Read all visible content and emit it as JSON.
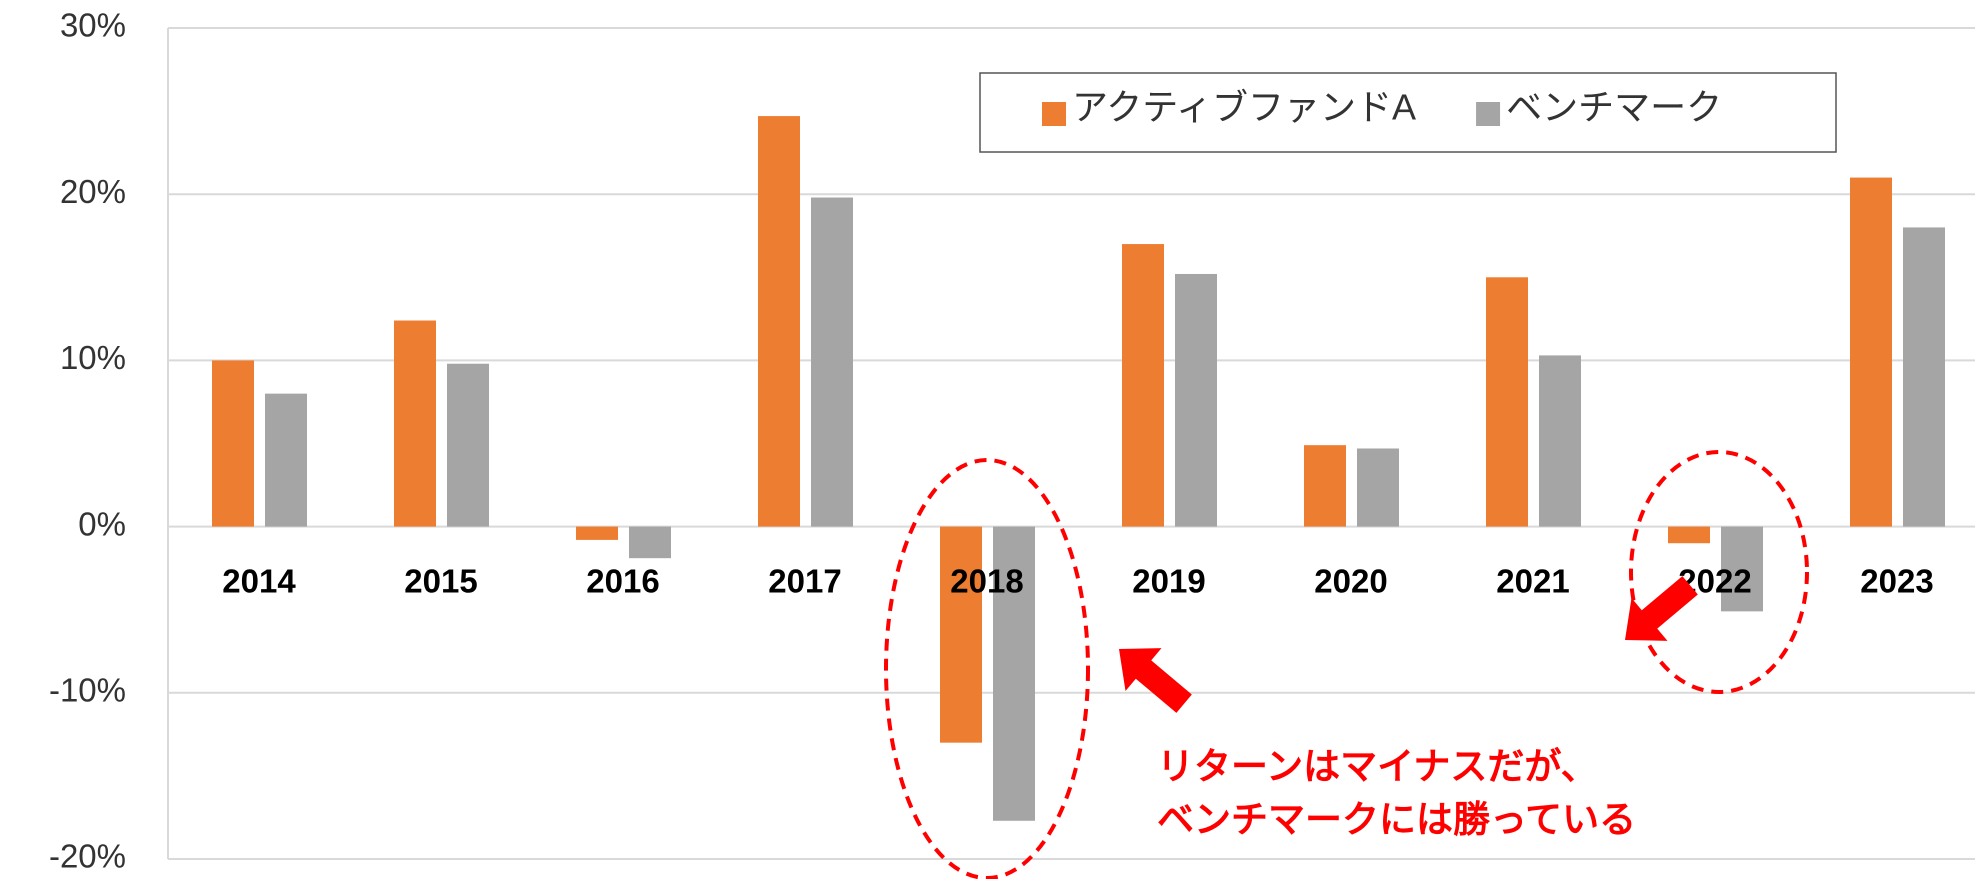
{
  "chart_data": {
    "type": "bar",
    "categories": [
      "2014",
      "2015",
      "2016",
      "2017",
      "2018",
      "2019",
      "2020",
      "2021",
      "2022",
      "2023"
    ],
    "series": [
      {
        "name": "アクティブファンドA",
        "color": "#ed7d31",
        "values": [
          10,
          12.4,
          -0.8,
          24.7,
          -13,
          17,
          4.9,
          15,
          -1,
          21
        ]
      },
      {
        "name": "ベンチマーク",
        "color": "#a5a5a5",
        "values": [
          8,
          9.8,
          -1.9,
          19.8,
          -17.7,
          15.2,
          4.7,
          10.3,
          -5.1,
          18
        ]
      }
    ],
    "ylim": [
      -20,
      30
    ],
    "yticks": [
      {
        "value": -20,
        "label": "-20%"
      },
      {
        "value": -10,
        "label": "-10%"
      },
      {
        "value": 0,
        "label": "0%"
      },
      {
        "value": 10,
        "label": "10%"
      },
      {
        "value": 20,
        "label": "20%"
      },
      {
        "value": 30,
        "label": "30%"
      }
    ],
    "grid": true,
    "legend": "top",
    "annotations": [
      "リターンはマイナスだが、",
      "ベンチマークには勝っている"
    ]
  }
}
